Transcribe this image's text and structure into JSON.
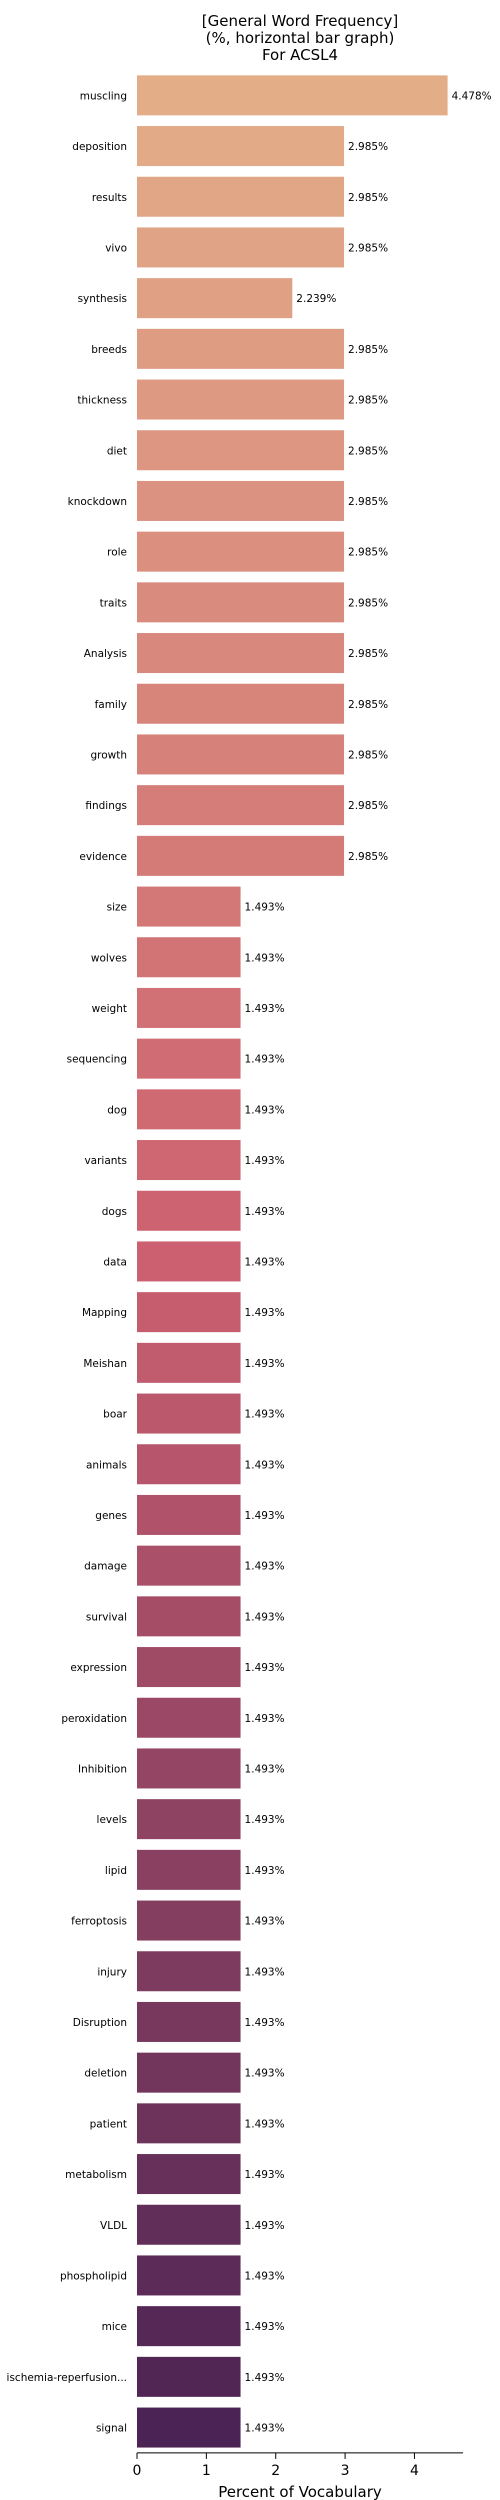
{
  "chart_data": {
    "type": "bar",
    "orientation": "horizontal",
    "title": [
      "[General Word Frequency]",
      "(%, horizontal bar graph)",
      "For ACSL4"
    ],
    "xlabel": "Percent of Vocabulary",
    "ylabel": "",
    "xlim": [
      0,
      4.7
    ],
    "xticks": [
      0,
      1,
      2,
      3,
      4
    ],
    "grid": false,
    "legend": "none",
    "palette": {
      "start": "#e3ad88",
      "middle": "#cc6070",
      "end": "#4b2354"
    },
    "categories": [
      "muscling",
      "deposition",
      "results",
      "vivo",
      "synthesis",
      "breeds",
      "thickness",
      "diet",
      "knockdown",
      "role",
      "traits",
      "Analysis",
      "family",
      "growth",
      "findings",
      "evidence",
      "size",
      "wolves",
      "weight",
      "sequencing",
      "dog",
      "variants",
      "dogs",
      "data",
      "Mapping",
      "Meishan",
      "boar",
      "animals",
      "genes",
      "damage",
      "survival",
      "expression",
      "peroxidation",
      "Inhibition",
      "levels",
      "lipid",
      "ferroptosis",
      "injury",
      "Disruption",
      "deletion",
      "patient",
      "metabolism",
      "VLDL",
      "phospholipid",
      "mice",
      "ischemia-reperfusion...",
      "signal"
    ],
    "values": [
      4.478,
      2.985,
      2.985,
      2.985,
      2.239,
      2.985,
      2.985,
      2.985,
      2.985,
      2.985,
      2.985,
      2.985,
      2.985,
      2.985,
      2.985,
      2.985,
      1.493,
      1.493,
      1.493,
      1.493,
      1.493,
      1.493,
      1.493,
      1.493,
      1.493,
      1.493,
      1.493,
      1.493,
      1.493,
      1.493,
      1.493,
      1.493,
      1.493,
      1.493,
      1.493,
      1.493,
      1.493,
      1.493,
      1.493,
      1.493,
      1.493,
      1.493,
      1.493,
      1.493,
      1.493,
      1.493,
      1.493
    ],
    "value_labels": [
      "4.478%",
      "2.985%",
      "2.985%",
      "2.985%",
      "2.239%",
      "2.985%",
      "2.985%",
      "2.985%",
      "2.985%",
      "2.985%",
      "2.985%",
      "2.985%",
      "2.985%",
      "2.985%",
      "2.985%",
      "2.985%",
      "1.493%",
      "1.493%",
      "1.493%",
      "1.493%",
      "1.493%",
      "1.493%",
      "1.493%",
      "1.493%",
      "1.493%",
      "1.493%",
      "1.493%",
      "1.493%",
      "1.493%",
      "1.493%",
      "1.493%",
      "1.493%",
      "1.493%",
      "1.493%",
      "1.493%",
      "1.493%",
      "1.493%",
      "1.493%",
      "1.493%",
      "1.493%",
      "1.493%",
      "1.493%",
      "1.493%",
      "1.493%",
      "1.493%",
      "1.493%",
      "1.493%"
    ]
  }
}
